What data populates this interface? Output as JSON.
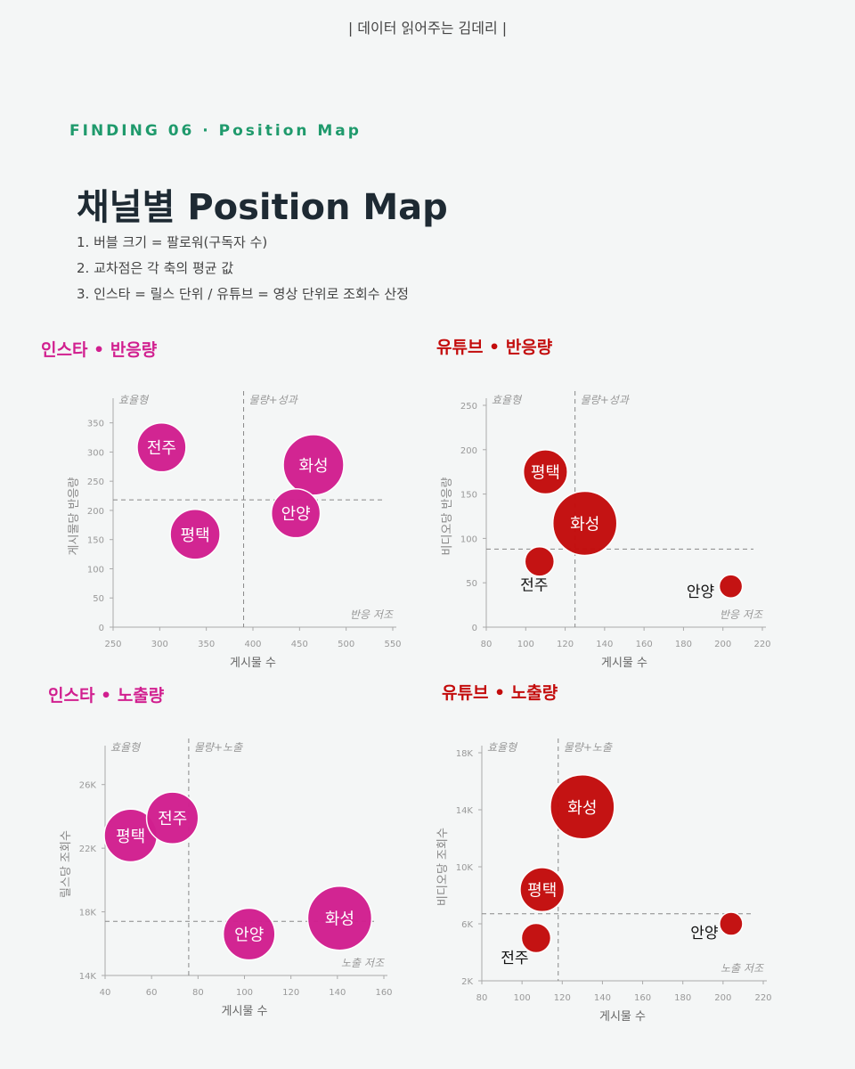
{
  "header": {
    "brand": "| 데이터 읽어주는 김데리 |"
  },
  "finding": {
    "kicker": "FINDING 06 · Position Map",
    "title": "채널별 Position Map",
    "notes": [
      "1. 버블 크기 = 팔로워(구독자 수)",
      "2. 교차점은 각 축의 평균 값",
      "3. 인스타 = 릴스 단위 / 유튜브 = 영상 단위로 조회수 산정"
    ]
  },
  "colors": {
    "insta": "#d11f8f",
    "youtube": "#c30c0c",
    "kicker": "#1f9a6c",
    "quad_label": "#999999"
  },
  "chart_data": [
    {
      "type": "scatter",
      "title": "인스타 • 반응량",
      "xlabel": "게시물 수",
      "ylabel": "게시물당 반응량",
      "xlim": [
        250,
        550
      ],
      "ylim": [
        0,
        380
      ],
      "xticks": [
        "250",
        "300",
        "350",
        "400",
        "450",
        "500",
        "550"
      ],
      "yticks": [
        "0",
        "50",
        "100",
        "150",
        "200",
        "250",
        "300",
        "350"
      ],
      "mean_x": 390,
      "mean_y": 218,
      "quadrants": {
        "top_left": "효율형",
        "top_right": "물량+성과",
        "bottom_right": "반응 저조"
      },
      "points": [
        {
          "label": "전주",
          "x": 302,
          "y": 308,
          "size": 75000
        },
        {
          "label": "평택",
          "x": 338,
          "y": 159,
          "size": 78000
        },
        {
          "label": "화성",
          "x": 465,
          "y": 278,
          "size": 115000
        },
        {
          "label": "안양",
          "x": 446,
          "y": 195,
          "size": 75000
        }
      ]
    },
    {
      "type": "scatter",
      "title": "유튜브 • 반응량",
      "xlabel": "게시물 수",
      "ylabel": "비디오당 반응량",
      "xlim": [
        80,
        220
      ],
      "ylim": [
        0,
        250
      ],
      "xticks": [
        "80",
        "100",
        "120",
        "140",
        "160",
        "180",
        "200",
        "220"
      ],
      "yticks": [
        "0",
        "50",
        "100",
        "150",
        "200",
        "250"
      ],
      "mean_x": 125,
      "mean_y": 88,
      "quadrants": {
        "top_left": "효율형",
        "top_right": "물량+성과",
        "bottom_right": "반응 저조"
      },
      "points": [
        {
          "label": "평택",
          "x": 110,
          "y": 175,
          "size": 9000
        },
        {
          "label": "화성",
          "x": 130,
          "y": 117,
          "size": 19000
        },
        {
          "label": "전주",
          "x": 107,
          "y": 74,
          "size": 4000
        },
        {
          "label": "안양",
          "x": 204,
          "y": 46,
          "size": 2500
        }
      ]
    },
    {
      "type": "scatter",
      "title": "인스타 • 노출량",
      "xlabel": "게시물 수",
      "ylabel": "릴스당 조회수",
      "xlim": [
        40,
        160
      ],
      "ylim": [
        14000,
        28000
      ],
      "xticks": [
        "40",
        "60",
        "80",
        "100",
        "120",
        "140",
        "160"
      ],
      "yticks": [
        "14K",
        "18K",
        "22K",
        "26K"
      ],
      "ytick_values": [
        14000,
        18000,
        22000,
        26000
      ],
      "mean_x": 76,
      "mean_y": 17400,
      "quadrants": {
        "top_left": "효율형",
        "top_right": "물량+노출",
        "bottom_right": "노출 저조"
      },
      "points": [
        {
          "label": "평택",
          "x": 51,
          "y": 22800,
          "size": 78000
        },
        {
          "label": "전주",
          "x": 69,
          "y": 23900,
          "size": 75000
        },
        {
          "label": "안양",
          "x": 102,
          "y": 16600,
          "size": 75000
        },
        {
          "label": "화성",
          "x": 141,
          "y": 17600,
          "size": 115000
        }
      ]
    },
    {
      "type": "scatter",
      "title": "유튜브 • 노출량",
      "xlabel": "게시물 수",
      "ylabel": "비디오당 조회수",
      "xlim": [
        80,
        220
      ],
      "ylim": [
        2000,
        18000
      ],
      "xticks": [
        "80",
        "100",
        "120",
        "140",
        "160",
        "180",
        "200",
        "220"
      ],
      "yticks": [
        "2K",
        "6K",
        "10K",
        "14K",
        "18K"
      ],
      "ytick_values": [
        2000,
        6000,
        10000,
        14000,
        18000
      ],
      "mean_x": 118,
      "mean_y": 6700,
      "quadrants": {
        "top_left": "효율형",
        "top_right": "물량+노출",
        "bottom_right": "노출 저조"
      },
      "points": [
        {
          "label": "화성",
          "x": 130,
          "y": 14200,
          "size": 19000
        },
        {
          "label": "평택",
          "x": 110,
          "y": 8400,
          "size": 9000
        },
        {
          "label": "전주",
          "x": 107,
          "y": 5000,
          "size": 4000
        },
        {
          "label": "안양",
          "x": 204,
          "y": 6000,
          "size": 2500
        }
      ]
    }
  ]
}
